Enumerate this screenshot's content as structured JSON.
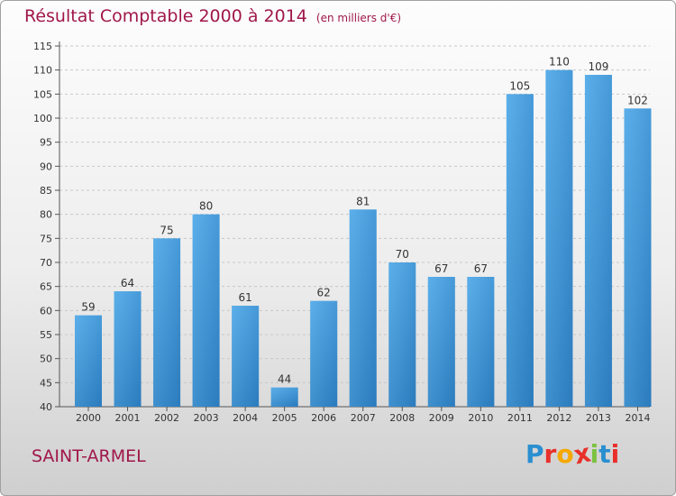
{
  "header": {
    "title": "Résultat Comptable 2000 à 2014",
    "unit": "(en milliers d'€)"
  },
  "footer": {
    "commune": "SAINT-ARMEL",
    "logo_text": "Proxiti"
  },
  "colors": {
    "title": "#a0174a",
    "bar_light": "#5aaee8",
    "bar_dark": "#2c7fc4",
    "logo_letters": [
      "#2a8fd0",
      "#e8302a",
      "#f5a800",
      "#e8302a",
      "#7cc242",
      "#2a8fd0",
      "#e8302a"
    ]
  },
  "chart_data": {
    "type": "bar",
    "title": "Résultat Comptable 2000 à 2014",
    "subtitle": "(en milliers d'€)",
    "categories": [
      "2000",
      "2001",
      "2002",
      "2003",
      "2004",
      "2005",
      "2006",
      "2007",
      "2008",
      "2009",
      "2010",
      "2011",
      "2012",
      "2013",
      "2014"
    ],
    "values": [
      59,
      64,
      75,
      80,
      61,
      44,
      62,
      81,
      70,
      67,
      67,
      105,
      110,
      109,
      102
    ],
    "ylim": [
      40,
      115
    ],
    "yticks": [
      40,
      45,
      50,
      55,
      60,
      65,
      70,
      75,
      80,
      85,
      90,
      95,
      100,
      105,
      110,
      115
    ],
    "grid": "horizontal-dashed",
    "legend": "none"
  }
}
